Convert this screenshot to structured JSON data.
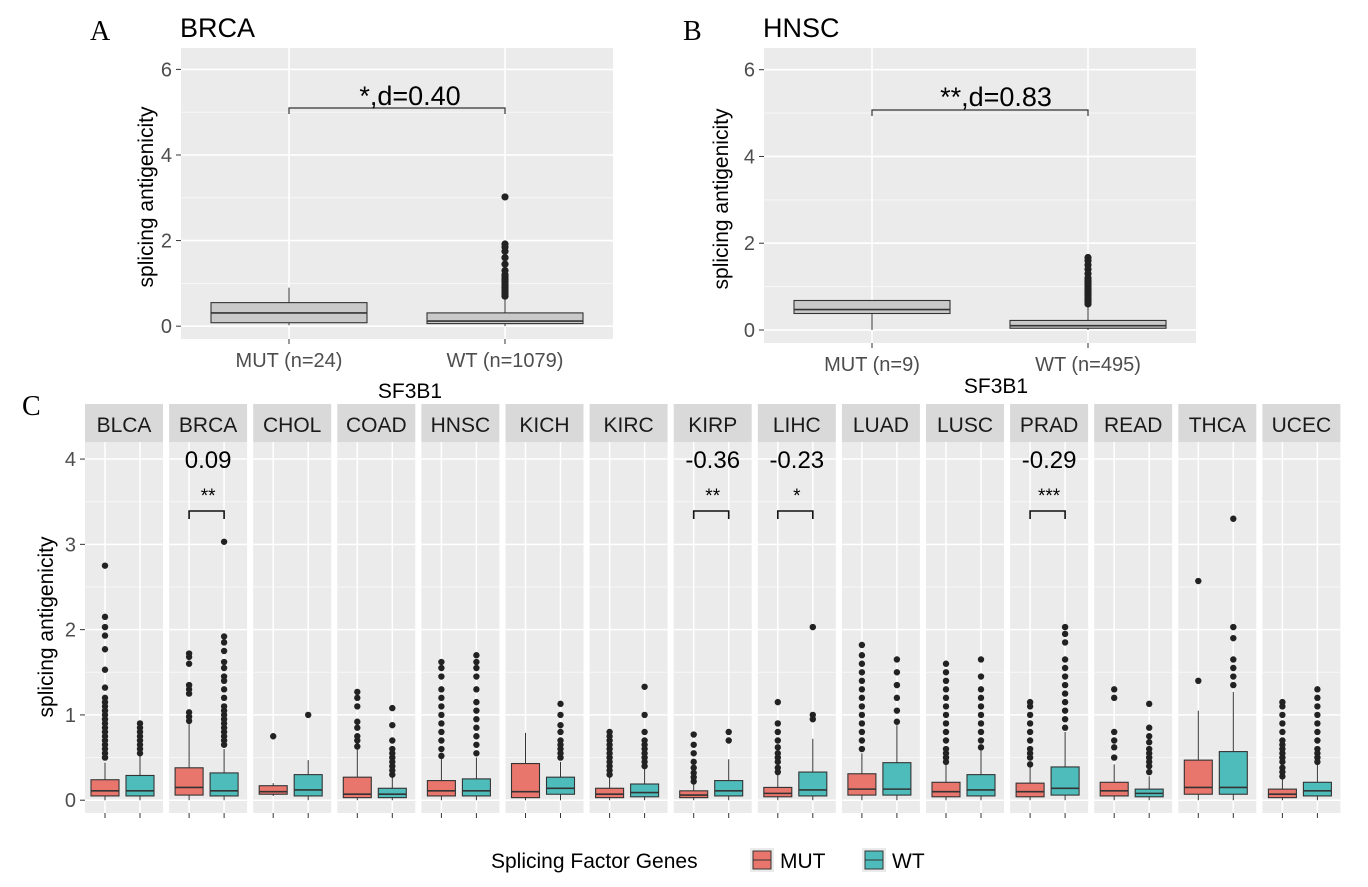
{
  "panel_a": {
    "letter": "A",
    "title": "BRCA",
    "xlabel": "SF3B1",
    "ylabel": "splicing antigenicity",
    "annotation": "*,d=0.40",
    "yticks": [
      "0",
      "2",
      "4",
      "6"
    ],
    "categories": [
      "MUT (n=24)",
      "WT (n=1079)"
    ]
  },
  "panel_b": {
    "letter": "B",
    "title": "HNSC",
    "xlabel": "SF3B1",
    "ylabel": "splicing antigenicity",
    "annotation": "**,d=0.83",
    "yticks": [
      "0",
      "2",
      "4",
      "6"
    ],
    "categories": [
      "MUT (n=9)",
      "WT (n=495)"
    ]
  },
  "panel_c": {
    "letter": "C",
    "ylabel": "splicing antigenicity",
    "yticks": [
      "0",
      "1",
      "2",
      "3",
      "4"
    ],
    "legend": {
      "title": "Splicing Factor Genes",
      "items": [
        {
          "label": "MUT",
          "color": "#e8766c"
        },
        {
          "label": "WT",
          "color": "#4fbcbc"
        }
      ]
    },
    "facets": [
      {
        "name": "BLCA",
        "d": "",
        "stars": ""
      },
      {
        "name": "BRCA",
        "d": "0.09",
        "stars": "**"
      },
      {
        "name": "CHOL",
        "d": "",
        "stars": ""
      },
      {
        "name": "COAD",
        "d": "",
        "stars": ""
      },
      {
        "name": "HNSC",
        "d": "",
        "stars": ""
      },
      {
        "name": "KICH",
        "d": "",
        "stars": ""
      },
      {
        "name": "KIRC",
        "d": "",
        "stars": ""
      },
      {
        "name": "KIRP",
        "d": "-0.36",
        "stars": "**"
      },
      {
        "name": "LIHC",
        "d": "-0.23",
        "stars": "*"
      },
      {
        "name": "LUAD",
        "d": "",
        "stars": ""
      },
      {
        "name": "LUSC",
        "d": "",
        "stars": ""
      },
      {
        "name": "PRAD",
        "d": "-0.29",
        "stars": "***"
      },
      {
        "name": "READ",
        "d": "",
        "stars": ""
      },
      {
        "name": "THCA",
        "d": "",
        "stars": ""
      },
      {
        "name": "UCEC",
        "d": "",
        "stars": ""
      }
    ]
  },
  "chart_data": [
    {
      "type": "box",
      "title": "BRCA",
      "xlabel": "SF3B1",
      "ylabel": "splicing antigenicity",
      "ylim": [
        -0.3,
        6.5
      ],
      "categories": [
        "MUT (n=24)",
        "WT (n=1079)"
      ],
      "boxes": [
        {
          "category": "MUT (n=24)",
          "min": 0.02,
          "q1": 0.08,
          "median": 0.31,
          "q3": 0.55,
          "max": 0.9,
          "outliers": []
        },
        {
          "category": "WT (n=1079)",
          "min": 0.0,
          "q1": 0.06,
          "median": 0.12,
          "q3": 0.31,
          "max": 0.65,
          "outliers": [
            0.7,
            0.75,
            0.8,
            0.85,
            0.9,
            0.95,
            1.0,
            1.05,
            1.1,
            1.15,
            1.2,
            1.3,
            1.45,
            1.6,
            1.75,
            1.85,
            1.92,
            3.02
          ]
        }
      ],
      "annotation": "*,d=0.40"
    },
    {
      "type": "box",
      "title": "HNSC",
      "xlabel": "SF3B1",
      "ylabel": "splicing antigenicity",
      "ylim": [
        -0.3,
        6.5
      ],
      "categories": [
        "MUT (n=9)",
        "WT (n=495)"
      ],
      "boxes": [
        {
          "category": "MUT (n=9)",
          "min": 0.0,
          "q1": 0.38,
          "median": 0.47,
          "q3": 0.68,
          "max": 0.68,
          "outliers": []
        },
        {
          "category": "WT (n=495)",
          "min": 0.0,
          "q1": 0.04,
          "median": 0.1,
          "q3": 0.22,
          "max": 0.55,
          "outliers": [
            0.6,
            0.65,
            0.7,
            0.75,
            0.8,
            0.85,
            0.9,
            0.95,
            1.0,
            1.05,
            1.1,
            1.15,
            1.2,
            1.3,
            1.4,
            1.5,
            1.6,
            1.67
          ]
        }
      ],
      "annotation": "**,d=0.83"
    },
    {
      "type": "box",
      "ylabel": "splicing antigenicity",
      "ylim": [
        -0.15,
        4.2
      ],
      "facet_by": "cancer type",
      "series": [
        {
          "name": "MUT",
          "color": "#e8766c"
        },
        {
          "name": "WT",
          "color": "#4fbcbc"
        }
      ],
      "facets": [
        {
          "name": "BLCA",
          "d": "",
          "stars": "",
          "MUT": {
            "min": 0.0,
            "q1": 0.05,
            "median": 0.11,
            "q3": 0.24,
            "max": 0.44,
            "outliers": [
              0.5,
              0.55,
              0.6,
              0.65,
              0.7,
              0.75,
              0.8,
              0.85,
              0.9,
              0.95,
              1.0,
              1.05,
              1.1,
              1.15,
              1.2,
              1.32,
              1.53,
              1.77,
              1.93,
              2.03,
              2.15,
              2.75
            ]
          },
          "WT": {
            "min": 0.0,
            "q1": 0.05,
            "median": 0.11,
            "q3": 0.29,
            "max": 0.52,
            "outliers": [
              0.55,
              0.6,
              0.65,
              0.7,
              0.75,
              0.8,
              0.85,
              0.9
            ]
          }
        },
        {
          "name": "BRCA",
          "d": "0.09",
          "stars": "**",
          "MUT": {
            "min": 0.0,
            "q1": 0.06,
            "median": 0.15,
            "q3": 0.38,
            "max": 0.9,
            "outliers": [
              0.93,
              0.98,
              1.03,
              1.25,
              1.3,
              1.35,
              1.6,
              1.68,
              1.72
            ]
          },
          "WT": {
            "min": 0.0,
            "q1": 0.05,
            "median": 0.11,
            "q3": 0.32,
            "max": 0.6,
            "outliers": [
              0.65,
              0.7,
              0.75,
              0.8,
              0.85,
              0.9,
              0.95,
              1.0,
              1.05,
              1.1,
              1.2,
              1.3,
              1.4,
              1.45,
              1.55,
              1.62,
              1.75,
              1.85,
              1.92,
              3.03
            ]
          }
        },
        {
          "name": "CHOL",
          "d": "",
          "stars": "",
          "MUT": {
            "min": 0.05,
            "q1": 0.07,
            "median": 0.1,
            "q3": 0.17,
            "max": 0.2,
            "outliers": [
              0.75
            ]
          },
          "WT": {
            "min": 0.0,
            "q1": 0.05,
            "median": 0.12,
            "q3": 0.3,
            "max": 0.47,
            "outliers": [
              1.0
            ]
          }
        },
        {
          "name": "COAD",
          "d": "",
          "stars": "",
          "MUT": {
            "min": 0.0,
            "q1": 0.03,
            "median": 0.07,
            "q3": 0.27,
            "max": 0.6,
            "outliers": [
              0.63,
              0.7,
              0.75,
              0.85,
              0.92,
              1.1,
              1.2,
              1.27
            ]
          },
          "WT": {
            "min": 0.0,
            "q1": 0.03,
            "median": 0.07,
            "q3": 0.14,
            "max": 0.28,
            "outliers": [
              0.3,
              0.35,
              0.4,
              0.45,
              0.5,
              0.55,
              0.6,
              0.7,
              0.88,
              1.08
            ]
          }
        },
        {
          "name": "HNSC",
          "d": "",
          "stars": "",
          "MUT": {
            "min": 0.0,
            "q1": 0.05,
            "median": 0.11,
            "q3": 0.23,
            "max": 0.5,
            "outliers": [
              0.52,
              0.6,
              0.7,
              0.8,
              0.9,
              1.0,
              1.1,
              1.2,
              1.3,
              1.45,
              1.55,
              1.62
            ]
          },
          "WT": {
            "min": 0.0,
            "q1": 0.05,
            "median": 0.11,
            "q3": 0.25,
            "max": 0.5,
            "outliers": [
              0.55,
              0.65,
              0.75,
              0.85,
              0.95,
              1.05,
              1.15,
              1.3,
              1.45,
              1.55,
              1.62,
              1.7
            ]
          }
        },
        {
          "name": "KICH",
          "d": "",
          "stars": "",
          "MUT": {
            "min": 0.0,
            "q1": 0.03,
            "median": 0.1,
            "q3": 0.43,
            "max": 0.79,
            "outliers": []
          },
          "WT": {
            "min": 0.0,
            "q1": 0.07,
            "median": 0.14,
            "q3": 0.27,
            "max": 0.45,
            "outliers": [
              0.5,
              0.55,
              0.6,
              0.65,
              0.7,
              0.8,
              0.88,
              1.0,
              1.13
            ]
          }
        },
        {
          "name": "KIRC",
          "d": "",
          "stars": "",
          "MUT": {
            "min": 0.0,
            "q1": 0.03,
            "median": 0.07,
            "q3": 0.14,
            "max": 0.28,
            "outliers": [
              0.3,
              0.35,
              0.4,
              0.45,
              0.5,
              0.55,
              0.6,
              0.65,
              0.7,
              0.75,
              0.8
            ]
          },
          "WT": {
            "min": 0.0,
            "q1": 0.04,
            "median": 0.09,
            "q3": 0.19,
            "max": 0.38,
            "outliers": [
              0.4,
              0.45,
              0.5,
              0.55,
              0.6,
              0.65,
              0.7,
              0.8,
              1.0,
              1.33
            ]
          }
        },
        {
          "name": "KIRP",
          "d": "-0.36",
          "stars": "**",
          "MUT": {
            "min": 0.0,
            "q1": 0.03,
            "median": 0.06,
            "q3": 0.11,
            "max": 0.2,
            "outliers": [
              0.22,
              0.27,
              0.32,
              0.38,
              0.45,
              0.55,
              0.65,
              0.77
            ]
          },
          "WT": {
            "min": 0.0,
            "q1": 0.05,
            "median": 0.11,
            "q3": 0.23,
            "max": 0.48,
            "outliers": [
              0.7,
              0.8
            ]
          }
        },
        {
          "name": "LIHC",
          "d": "-0.23",
          "stars": "*",
          "MUT": {
            "min": 0.0,
            "q1": 0.04,
            "median": 0.08,
            "q3": 0.15,
            "max": 0.3,
            "outliers": [
              0.33,
              0.38,
              0.45,
              0.5,
              0.55,
              0.62,
              0.7,
              0.8,
              0.9,
              1.15
            ]
          },
          "WT": {
            "min": 0.0,
            "q1": 0.05,
            "median": 0.12,
            "q3": 0.33,
            "max": 0.72,
            "outliers": [
              0.95,
              1.0,
              2.03
            ]
          }
        },
        {
          "name": "LUAD",
          "d": "",
          "stars": "",
          "MUT": {
            "min": 0.0,
            "q1": 0.06,
            "median": 0.13,
            "q3": 0.31,
            "max": 0.55,
            "outliers": [
              0.6,
              0.7,
              0.8,
              0.9,
              1.0,
              1.1,
              1.2,
              1.3,
              1.4,
              1.5,
              1.6,
              1.7,
              1.82
            ]
          },
          "WT": {
            "min": 0.0,
            "q1": 0.06,
            "median": 0.13,
            "q3": 0.44,
            "max": 0.88,
            "outliers": [
              0.92,
              1.05,
              1.2,
              1.35,
              1.5,
              1.65
            ]
          }
        },
        {
          "name": "LUSC",
          "d": "",
          "stars": "",
          "MUT": {
            "min": 0.0,
            "q1": 0.04,
            "median": 0.1,
            "q3": 0.21,
            "max": 0.43,
            "outliers": [
              0.45,
              0.5,
              0.55,
              0.6,
              0.7,
              0.8,
              0.9,
              1.0,
              1.1,
              1.2,
              1.3,
              1.4,
              1.5,
              1.6
            ]
          },
          "WT": {
            "min": 0.0,
            "q1": 0.05,
            "median": 0.12,
            "q3": 0.3,
            "max": 0.6,
            "outliers": [
              0.62,
              0.7,
              0.8,
              0.9,
              1.0,
              1.1,
              1.2,
              1.3,
              1.45,
              1.65
            ]
          }
        },
        {
          "name": "PRAD",
          "d": "-0.29",
          "stars": "***",
          "MUT": {
            "min": 0.0,
            "q1": 0.04,
            "median": 0.1,
            "q3": 0.2,
            "max": 0.4,
            "outliers": [
              0.42,
              0.5,
              0.55,
              0.6,
              0.7,
              0.8,
              0.9,
              1.0,
              1.1,
              1.15
            ]
          },
          "WT": {
            "min": 0.0,
            "q1": 0.06,
            "median": 0.14,
            "q3": 0.39,
            "max": 0.8,
            "outliers": [
              0.85,
              0.95,
              1.05,
              1.15,
              1.25,
              1.35,
              1.45,
              1.55,
              1.65,
              1.85,
              1.95,
              2.03
            ]
          }
        },
        {
          "name": "READ",
          "d": "",
          "stars": "",
          "MUT": {
            "min": 0.0,
            "q1": 0.05,
            "median": 0.11,
            "q3": 0.21,
            "max": 0.42,
            "outliers": [
              0.5,
              0.62,
              0.7,
              0.8,
              1.2,
              1.3
            ]
          },
          "WT": {
            "min": 0.0,
            "q1": 0.04,
            "median": 0.08,
            "q3": 0.13,
            "max": 0.28,
            "outliers": [
              0.33,
              0.4,
              0.45,
              0.5,
              0.55,
              0.6,
              0.68,
              0.75,
              0.85,
              1.13
            ]
          }
        },
        {
          "name": "THCA",
          "d": "",
          "stars": "",
          "MUT": {
            "min": 0.0,
            "q1": 0.07,
            "median": 0.15,
            "q3": 0.47,
            "max": 1.05,
            "outliers": [
              1.4,
              2.57
            ]
          },
          "WT": {
            "min": 0.0,
            "q1": 0.07,
            "median": 0.15,
            "q3": 0.57,
            "max": 1.27,
            "outliers": [
              1.35,
              1.45,
              1.55,
              1.65,
              1.9,
              2.03,
              3.3
            ]
          }
        },
        {
          "name": "UCEC",
          "d": "",
          "stars": "",
          "MUT": {
            "min": 0.0,
            "q1": 0.03,
            "median": 0.07,
            "q3": 0.13,
            "max": 0.25,
            "outliers": [
              0.28,
              0.33,
              0.38,
              0.45,
              0.5,
              0.55,
              0.6,
              0.65,
              0.7,
              0.8,
              0.9,
              1.0,
              1.1,
              1.15
            ]
          },
          "WT": {
            "min": 0.0,
            "q1": 0.05,
            "median": 0.11,
            "q3": 0.21,
            "max": 0.42,
            "outliers": [
              0.45,
              0.5,
              0.55,
              0.6,
              0.7,
              0.8,
              0.9,
              1.0,
              1.1,
              1.2,
              1.3
            ]
          }
        }
      ],
      "legend": "bottom"
    }
  ]
}
